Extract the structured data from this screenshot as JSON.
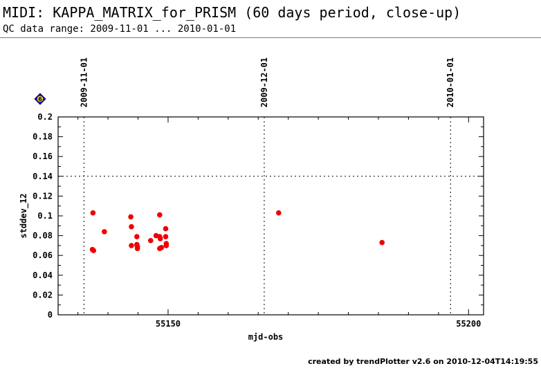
{
  "header": {
    "title": "MIDI: KAPPA_MATRIX_for_PRISM (60 days period, close-up)",
    "subtitle": "QC data range: 2009-11-01 ... 2010-01-01"
  },
  "badge": {
    "icon": "number-badge-icon",
    "label": "6",
    "color": "#1010e0"
  },
  "footer": {
    "text": "created by trendPlotter v2.6 on 2010-12-04T14:19:55"
  },
  "colors": {
    "points": "#ee0000",
    "axes": "#000000"
  },
  "chart_data": {
    "type": "scatter",
    "xlabel": "mjd-obs",
    "ylabel": "stddev_12",
    "xlim": [
      55131.7,
      55202.5
    ],
    "ylim": [
      0,
      0.2
    ],
    "x_ticks": [
      55150,
      55200
    ],
    "y_ticks": [
      0,
      0.02,
      0.04,
      0.06,
      0.08,
      0.1,
      0.12,
      0.14,
      0.16,
      0.18,
      0.2
    ],
    "y_tick_labels": [
      "0",
      "0.02",
      "0.04",
      "0.06",
      "0.08",
      "0.1",
      "0.12",
      "0.14",
      "0.16",
      "0.18",
      "0.2"
    ],
    "date_markers": [
      {
        "mjd": 55136,
        "label": "2009-11-01"
      },
      {
        "mjd": 55166,
        "label": "2009-12-01"
      },
      {
        "mjd": 55197,
        "label": "2010-01-01"
      }
    ],
    "threshold": {
      "y": 0.14,
      "style": "dotted"
    },
    "grid": false,
    "points": [
      {
        "x": 55137.5,
        "y": 0.103
      },
      {
        "x": 55137.4,
        "y": 0.066
      },
      {
        "x": 55137.6,
        "y": 0.065
      },
      {
        "x": 55139.4,
        "y": 0.084
      },
      {
        "x": 55143.8,
        "y": 0.099
      },
      {
        "x": 55143.9,
        "y": 0.089
      },
      {
        "x": 55143.9,
        "y": 0.07
      },
      {
        "x": 55144.8,
        "y": 0.079
      },
      {
        "x": 55144.8,
        "y": 0.071
      },
      {
        "x": 55144.9,
        "y": 0.069
      },
      {
        "x": 55144.9,
        "y": 0.067
      },
      {
        "x": 55147.1,
        "y": 0.075
      },
      {
        "x": 55148.0,
        "y": 0.08
      },
      {
        "x": 55148.6,
        "y": 0.101
      },
      {
        "x": 55148.6,
        "y": 0.079
      },
      {
        "x": 55148.7,
        "y": 0.077
      },
      {
        "x": 55148.6,
        "y": 0.067
      },
      {
        "x": 55148.9,
        "y": 0.068
      },
      {
        "x": 55149.6,
        "y": 0.087
      },
      {
        "x": 55149.6,
        "y": 0.079
      },
      {
        "x": 55149.7,
        "y": 0.072
      },
      {
        "x": 55149.7,
        "y": 0.07
      },
      {
        "x": 55168.4,
        "y": 0.103
      },
      {
        "x": 55185.6,
        "y": 0.073
      }
    ]
  }
}
